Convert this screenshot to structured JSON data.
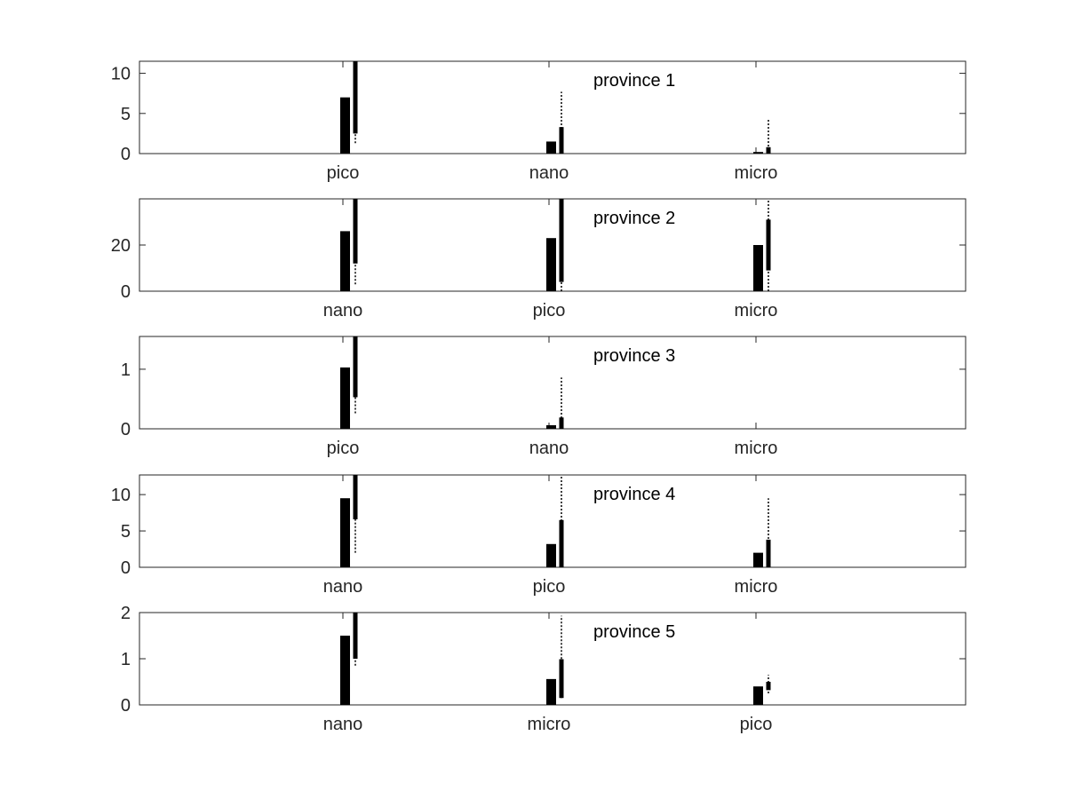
{
  "chart_data": [
    {
      "type": "bar",
      "title": "province 1",
      "categories": [
        "pico",
        "nano",
        "micro"
      ],
      "values": [
        7.0,
        1.5,
        0.2
      ],
      "ylim": [
        0,
        11.5
      ],
      "yticks": [
        0,
        5,
        10
      ],
      "uncertainty": [
        {
          "box": [
            2.5,
            11.5
          ],
          "whisker": [
            1.3,
            11.5
          ]
        },
        {
          "box": [
            0.0,
            3.3
          ],
          "whisker": [
            0.0,
            7.7
          ]
        },
        {
          "box": [
            0.0,
            0.8
          ],
          "whisker": [
            0.0,
            4.3
          ]
        }
      ],
      "grid": false
    },
    {
      "type": "bar",
      "title": "province 2",
      "categories": [
        "nano",
        "pico",
        "micro"
      ],
      "values": [
        26,
        23,
        20
      ],
      "ylim": [
        0,
        40
      ],
      "yticks": [
        0,
        20
      ],
      "uncertainty": [
        {
          "box": [
            12,
            40
          ],
          "whisker": [
            3,
            40
          ]
        },
        {
          "box": [
            4,
            40
          ],
          "whisker": [
            0,
            40
          ]
        },
        {
          "box": [
            9,
            31
          ],
          "whisker": [
            0,
            40
          ]
        }
      ],
      "grid": false
    },
    {
      "type": "bar",
      "title": "province 3",
      "categories": [
        "pico",
        "nano",
        "micro"
      ],
      "values": [
        1.03,
        0.06,
        0.0
      ],
      "ylim": [
        0,
        1.55
      ],
      "yticks": [
        0,
        1
      ],
      "uncertainty": [
        {
          "box": [
            0.53,
            1.55
          ],
          "whisker": [
            0.26,
            1.55
          ]
        },
        {
          "box": [
            0.0,
            0.19
          ],
          "whisker": [
            0.0,
            0.86
          ]
        },
        null
      ],
      "grid": false
    },
    {
      "type": "bar",
      "title": "province 4",
      "categories": [
        "nano",
        "pico",
        "micro"
      ],
      "values": [
        9.5,
        3.2,
        2.0
      ],
      "ylim": [
        0,
        12.7
      ],
      "yticks": [
        0,
        5,
        10
      ],
      "uncertainty": [
        {
          "box": [
            6.6,
            12.7
          ],
          "whisker": [
            2.0,
            12.7
          ]
        },
        {
          "box": [
            0.0,
            6.5
          ],
          "whisker": [
            0.0,
            12.7
          ]
        },
        {
          "box": [
            0.0,
            3.8
          ],
          "whisker": [
            0.0,
            9.5
          ]
        }
      ],
      "grid": false
    },
    {
      "type": "bar",
      "title": "province 5",
      "categories": [
        "nano",
        "micro",
        "pico"
      ],
      "values": [
        1.5,
        0.56,
        0.4
      ],
      "ylim": [
        0,
        2.0
      ],
      "yticks": [
        0,
        1,
        2
      ],
      "uncertainty": [
        {
          "box": [
            1.0,
            2.0
          ],
          "whisker": [
            0.85,
            2.0
          ]
        },
        {
          "box": [
            0.15,
            0.99
          ],
          "whisker": [
            0.15,
            1.93
          ]
        },
        {
          "box": [
            0.32,
            0.5
          ],
          "whisker": [
            0.25,
            0.65
          ]
        }
      ],
      "grid": false
    }
  ]
}
